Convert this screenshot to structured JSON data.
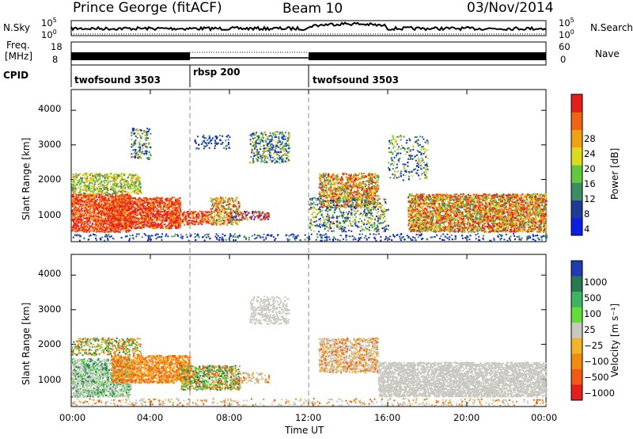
{
  "header": {
    "station": "Prince George (fitACF)",
    "beam": "Beam 10",
    "date": "03/Nov/2014"
  },
  "nsky_panel": {
    "left_label": "N.Sky",
    "right_label": "N.Search",
    "left_ticks": [
      "10^5",
      "10^0"
    ],
    "right_ticks": [
      "10^5",
      "10^0"
    ]
  },
  "freq_panel": {
    "left_label_1": "Freq.",
    "left_label_2": "[MHz]",
    "right_label": "Nave",
    "left_ticks": [
      "18",
      "8"
    ],
    "right_ticks": [
      "60",
      "0"
    ]
  },
  "cpid": {
    "label": "CPID",
    "segments": [
      {
        "name": "twofsound 3503",
        "start": 0,
        "end": 6
      },
      {
        "name": "rbsp 200",
        "start": 6,
        "end": 12
      },
      {
        "name": "twofsound 3503",
        "start": 12,
        "end": 24
      }
    ]
  },
  "chart_data": [
    {
      "type": "heatmap",
      "name": "power",
      "ylabel": "Slant Range [km]",
      "yticks": [
        "1000",
        "2000",
        "3000",
        "4000"
      ],
      "ylim": [
        200,
        4600
      ],
      "colorbar_label": "Power [dB]",
      "colorbar_ticks": [
        "4",
        "8",
        "12",
        "16",
        "20",
        "24",
        "28"
      ],
      "colors": [
        "#0a1ee6",
        "#1e3c96",
        "#3c8c64",
        "#64c83c",
        "#dcdc1e",
        "#f0a014",
        "#f06414",
        "#e61e1e"
      ]
    },
    {
      "type": "heatmap",
      "name": "velocity",
      "ylabel": "Slant Range [km]",
      "yticks": [
        "1000",
        "2000",
        "3000",
        "4000"
      ],
      "ylim": [
        200,
        4600
      ],
      "colorbar_label": "Velocity [m s⁻¹]",
      "colorbar_ticks": [
        "1000",
        "500",
        "100",
        "25",
        "−25",
        "−100",
        "−500",
        "−1000"
      ],
      "colors": [
        "#1e3cb4",
        "#287850",
        "#3cb464",
        "#64dc3c",
        "#c8c8c0",
        "#f0b428",
        "#f08c14",
        "#f05a14",
        "#e61e1e"
      ]
    }
  ],
  "x_axis": {
    "ticks": [
      "00:00",
      "04:00",
      "08:00",
      "12:00",
      "16:00",
      "20:00",
      "00:00"
    ],
    "label": "Time UT"
  }
}
